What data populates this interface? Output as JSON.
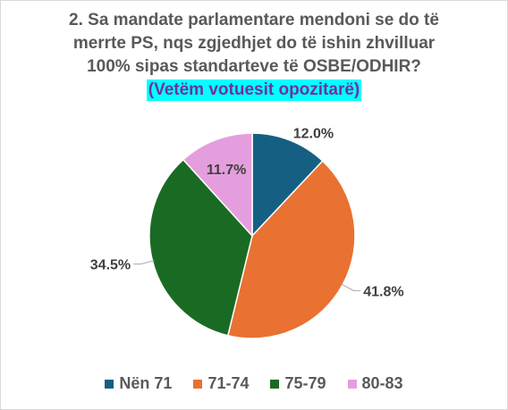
{
  "chart_data": {
    "type": "pie",
    "title_lines": [
      "2. Sa mandate parlamentare mendoni se do të",
      "merrte PS, nqs zgjedhjet do të ishin zhvilluar",
      "100% sipas standarteve të OSBE/ODHIR?"
    ],
    "subtitle": "(Vetëm votuesit opozitarë)",
    "categories": [
      "Nën 71",
      "71-74",
      "75-79",
      "80-83"
    ],
    "values": [
      12.0,
      41.8,
      34.5,
      11.7
    ],
    "data_labels": [
      "12.0%",
      "41.8%",
      "34.5%",
      "11.7%"
    ],
    "colors": [
      "#156082",
      "#e97132",
      "#196b24",
      "#e59edd"
    ],
    "legend_position": "bottom",
    "start_angle": "12 o'clock, clockwise"
  }
}
